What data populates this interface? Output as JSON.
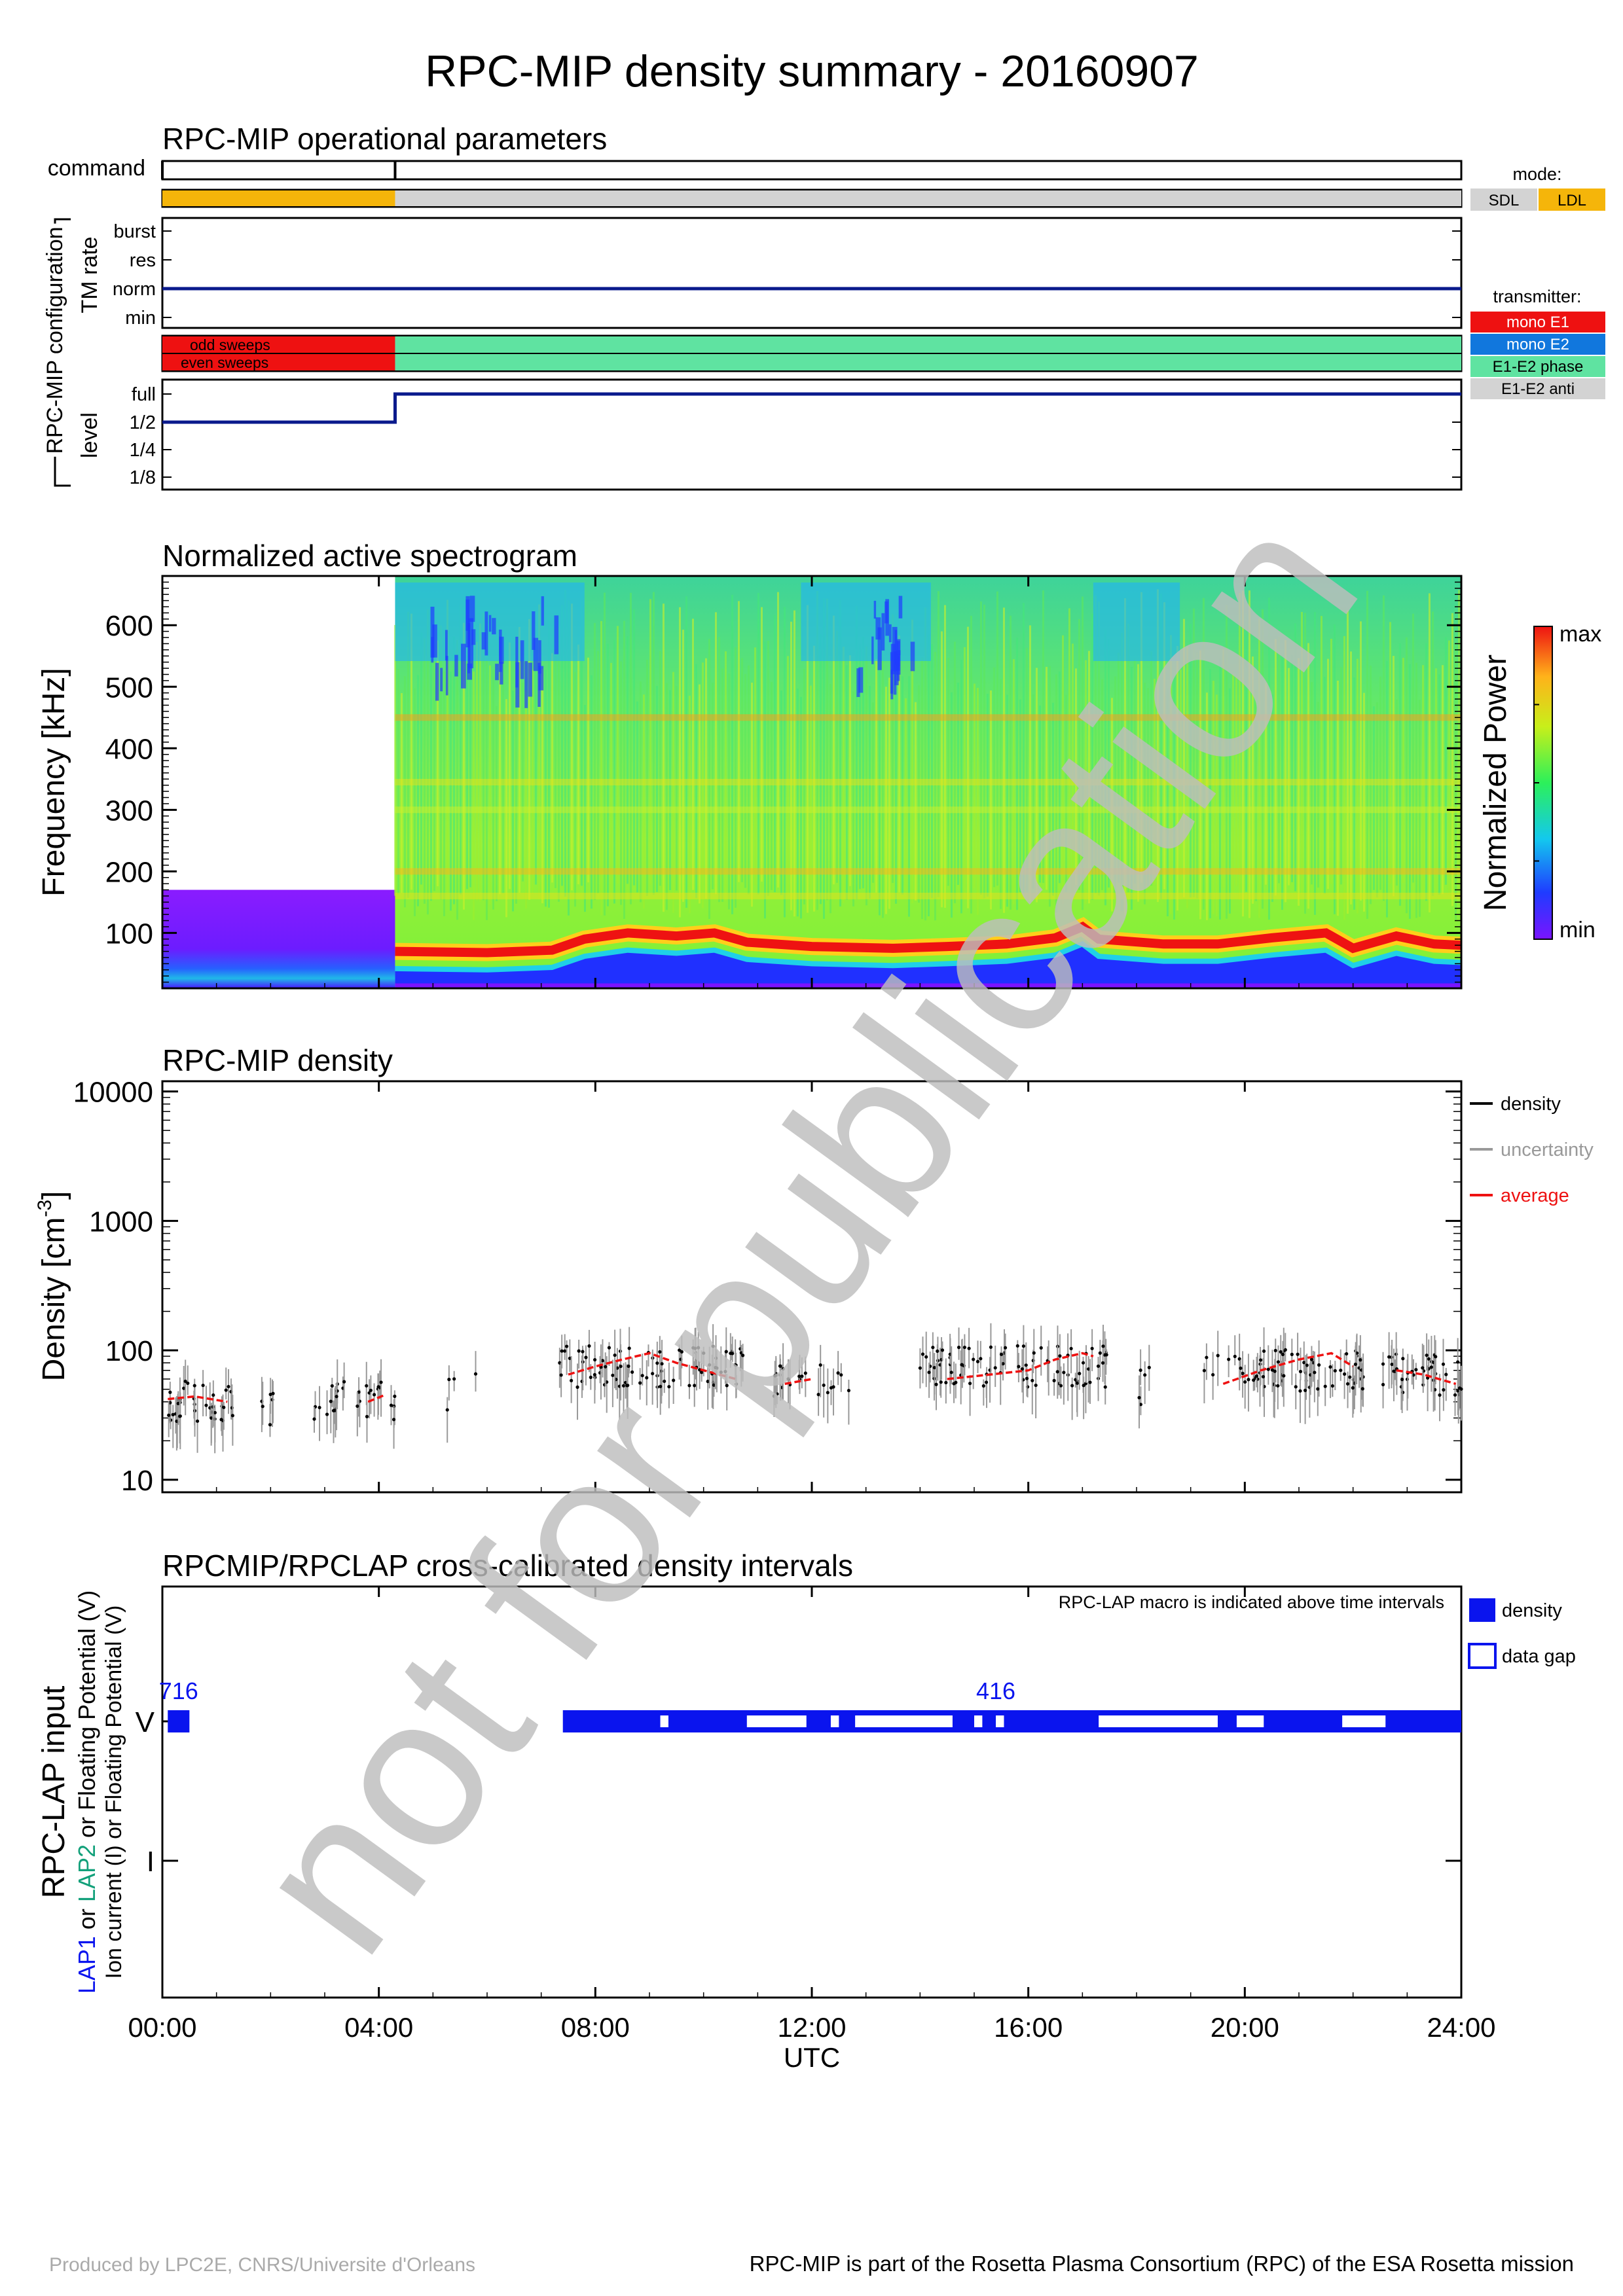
{
  "page": {
    "title": "RPC-MIP density summary - 20160907",
    "watermark": "not for publication",
    "footer_left": "Produced by LPC2E, CNRS/Universite d'Orleans",
    "footer_right": "RPC-MIP is part of the Rosetta Plasma Consortium (RPC) of the ESA Rosetta mission"
  },
  "time_axis": {
    "ticks": [
      "00:00",
      "04:00",
      "08:00",
      "12:00",
      "16:00",
      "20:00",
      "24:00"
    ],
    "tick_hours": [
      0,
      4,
      8,
      12,
      16,
      20,
      24
    ],
    "label": "UTC",
    "range_hours": [
      0,
      24
    ]
  },
  "operational": {
    "title": "RPC-MIP operational parameters",
    "command_label": "command",
    "command_marks_hours": [
      0,
      4.3
    ],
    "mode_segments": [
      {
        "from": 0,
        "to": 4.3,
        "mode": "LDL"
      },
      {
        "from": 4.3,
        "to": 24,
        "mode": "SDL"
      }
    ],
    "config_label": "RPC-MIP configuration",
    "tm_rate": {
      "label": "TM rate",
      "levels": [
        "burst",
        "res",
        "norm",
        "min"
      ],
      "segments": [
        {
          "from": 0,
          "to": 24,
          "level": "norm"
        }
      ]
    },
    "sweeps": {
      "odd_label": "odd sweeps",
      "even_label": "even sweeps",
      "segments": [
        {
          "from": 0,
          "to": 4.3,
          "transmitter": "mono E1"
        },
        {
          "from": 4.3,
          "to": 24,
          "transmitter": "E1-E2 phase"
        }
      ]
    },
    "level": {
      "label": "level",
      "levels": [
        "full",
        "1/2",
        "1/4",
        "1/8"
      ],
      "segments": [
        {
          "from": 0,
          "to": 4.3,
          "level": "1/2"
        },
        {
          "from": 4.3,
          "to": 24,
          "level": "full"
        }
      ]
    },
    "mode_legend": {
      "title": "mode:",
      "items": [
        {
          "label": "SDL",
          "color": "#d3d3d3"
        },
        {
          "label": "LDL",
          "color": "#f5b50a"
        }
      ]
    },
    "transmitter_legend": {
      "title": "transmitter:",
      "items": [
        {
          "label": "mono E1",
          "color": "#ee1111"
        },
        {
          "label": "mono E2",
          "color": "#1177dd"
        },
        {
          "label": "E1-E2 phase",
          "color": "#5fe3a1"
        },
        {
          "label": "E1-E2 anti",
          "color": "#d3d3d3"
        }
      ]
    }
  },
  "spectrogram": {
    "title": "Normalized active spectrogram",
    "ylabel": "Frequency [kHz]",
    "yticks": [
      100,
      200,
      300,
      400,
      500,
      600
    ],
    "ylim": [
      10,
      680
    ],
    "colorbar_label": "Normalized Power",
    "colorbar_max": "max",
    "colorbar_min": "min",
    "early_segment": {
      "from": 0,
      "to": 4.3,
      "fmax_khz": 170
    },
    "main_segment": {
      "from": 4.3,
      "to": 24
    },
    "plasma_line_khz": [
      {
        "h": 4.3,
        "f": 70
      },
      {
        "h": 6,
        "f": 68
      },
      {
        "h": 7.2,
        "f": 72
      },
      {
        "h": 7.8,
        "f": 90
      },
      {
        "h": 8.6,
        "f": 100
      },
      {
        "h": 9.5,
        "f": 95
      },
      {
        "h": 10.2,
        "f": 100
      },
      {
        "h": 10.8,
        "f": 85
      },
      {
        "h": 12,
        "f": 78
      },
      {
        "h": 13.5,
        "f": 75
      },
      {
        "h": 14.5,
        "f": 78
      },
      {
        "h": 15.6,
        "f": 82
      },
      {
        "h": 16.5,
        "f": 92
      },
      {
        "h": 17.0,
        "f": 110
      },
      {
        "h": 17.3,
        "f": 90
      },
      {
        "h": 18.5,
        "f": 82
      },
      {
        "h": 19.5,
        "f": 82
      },
      {
        "h": 20.5,
        "f": 92
      },
      {
        "h": 21.5,
        "f": 100
      },
      {
        "h": 22,
        "f": 75
      },
      {
        "h": 22.8,
        "f": 95
      },
      {
        "h": 23.5,
        "f": 82
      },
      {
        "h": 24,
        "f": 80
      }
    ]
  },
  "density": {
    "title": "RPC-MIP density",
    "ylabel": "Density [cm",
    "ylabel_sup": "-3",
    "ylabel_end": "]",
    "yscale": "log",
    "yticks": [
      10,
      100,
      1000,
      10000
    ],
    "ylim": [
      8,
      12000
    ],
    "legend": [
      {
        "label": "density",
        "color": "#000000"
      },
      {
        "label": "uncertainty",
        "color": "#999999"
      },
      {
        "label": "average",
        "color": "#ee1111"
      }
    ],
    "average_segments": [
      [
        {
          "h": 0.1,
          "n": 42
        },
        {
          "h": 0.6,
          "n": 44
        },
        {
          "h": 1.2,
          "n": 40
        }
      ],
      [
        {
          "h": 3.8,
          "n": 40
        },
        {
          "h": 4.1,
          "n": 45
        }
      ],
      [
        {
          "h": 7.5,
          "n": 65
        },
        {
          "h": 8.0,
          "n": 75
        },
        {
          "h": 8.5,
          "n": 85
        },
        {
          "h": 9.0,
          "n": 95
        },
        {
          "h": 9.5,
          "n": 80
        },
        {
          "h": 10.0,
          "n": 70
        },
        {
          "h": 10.6,
          "n": 60
        }
      ],
      [
        {
          "h": 11.5,
          "n": 55
        },
        {
          "h": 12.0,
          "n": 60
        }
      ],
      [
        {
          "h": 14.5,
          "n": 60
        },
        {
          "h": 15.3,
          "n": 65
        },
        {
          "h": 16.0,
          "n": 70
        },
        {
          "h": 16.5,
          "n": 85
        },
        {
          "h": 17.0,
          "n": 95
        },
        {
          "h": 17.2,
          "n": 90
        }
      ],
      [
        {
          "h": 19.6,
          "n": 55
        },
        {
          "h": 20.3,
          "n": 70
        },
        {
          "h": 21.0,
          "n": 85
        },
        {
          "h": 21.6,
          "n": 95
        },
        {
          "h": 22.0,
          "n": 75
        }
      ],
      [
        {
          "h": 22.8,
          "n": 70
        },
        {
          "h": 23.3,
          "n": 65
        },
        {
          "h": 23.9,
          "n": 55
        }
      ]
    ],
    "point_clusters": [
      {
        "from": 0.1,
        "to": 1.3,
        "n": 40,
        "count": 40
      },
      {
        "from": 1.5,
        "to": 2.2,
        "n": 38,
        "count": 6
      },
      {
        "from": 2.8,
        "to": 4.3,
        "n": 42,
        "count": 30
      },
      {
        "from": 5.2,
        "to": 5.8,
        "n": 50,
        "count": 4
      },
      {
        "from": 7.3,
        "to": 10.8,
        "n": 75,
        "count": 90
      },
      {
        "from": 11.3,
        "to": 12.7,
        "n": 58,
        "count": 25
      },
      {
        "from": 14.0,
        "to": 17.5,
        "n": 75,
        "count": 90
      },
      {
        "from": 17.8,
        "to": 18.3,
        "n": 52,
        "count": 5
      },
      {
        "from": 19.2,
        "to": 22.2,
        "n": 70,
        "count": 75
      },
      {
        "from": 22.5,
        "to": 24.0,
        "n": 65,
        "count": 45
      }
    ]
  },
  "lap": {
    "title": "RPCMIP/RPCLAP cross-calibrated density intervals",
    "note": "RPC-LAP macro is indicated above time intervals",
    "ylabel": "RPC-LAP input",
    "ylabel2_lap1": "LAP1",
    "ylabel2_or": " or ",
    "ylabel2_lap2": "LAP2",
    "ylabel2_rest": " or Floating Potential (V)",
    "ylabel3": "Ion current (I) or Floating Potential (V)",
    "levels": [
      "V",
      "I"
    ],
    "legend": [
      {
        "label": "density",
        "style": "filled",
        "color": "#0a14ee"
      },
      {
        "label": "data gap",
        "style": "open",
        "color": "#0a14ee"
      }
    ],
    "macros": [
      {
        "label": "716",
        "h": 0.3
      },
      {
        "label": "416",
        "h": 15.4
      }
    ],
    "density_intervals": [
      [
        0.1,
        0.5
      ],
      [
        7.4,
        24.0
      ]
    ],
    "gap_intervals": [
      [
        9.2,
        9.35
      ],
      [
        10.8,
        11.9
      ],
      [
        12.35,
        12.5
      ],
      [
        12.8,
        14.6
      ],
      [
        15.0,
        15.15
      ],
      [
        15.4,
        15.55
      ],
      [
        17.3,
        19.5
      ],
      [
        19.85,
        20.35
      ],
      [
        21.8,
        22.6
      ]
    ]
  }
}
